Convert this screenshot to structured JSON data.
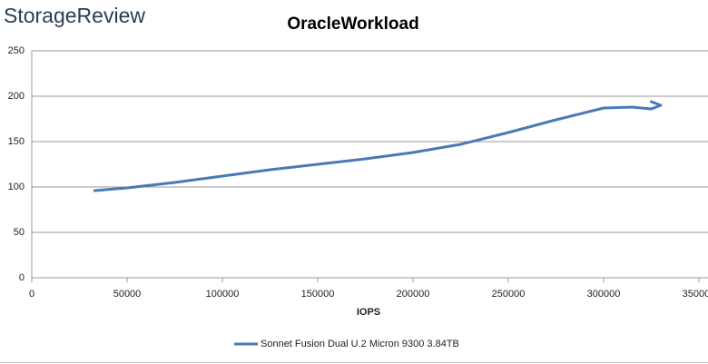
{
  "brand": "StorageReview",
  "chart_data": {
    "type": "line",
    "title": "OracleWorkload",
    "x_label": "IOPS",
    "series": [
      {
        "name": "Sonnet Fusion Dual U.2 Micron 9300 3.84TB",
        "color": "#4a7ab5",
        "x": [
          33000,
          50000,
          75000,
          100000,
          125000,
          150000,
          175000,
          200000,
          225000,
          250000,
          275000,
          300000,
          315000,
          325000,
          330000,
          325000
        ],
        "values": [
          96,
          99,
          105,
          112,
          119,
          125,
          131,
          138,
          147,
          160,
          174,
          187,
          188,
          186,
          190,
          194
        ]
      }
    ],
    "xlim": [
      0,
      350000
    ],
    "xticks": [
      0,
      50000,
      100000,
      150000,
      200000,
      250000,
      300000,
      350000
    ],
    "ylim": [
      0,
      250
    ],
    "yticks": [
      0,
      50,
      100,
      150,
      200,
      250
    ],
    "grid": true,
    "legend": "bottom"
  }
}
